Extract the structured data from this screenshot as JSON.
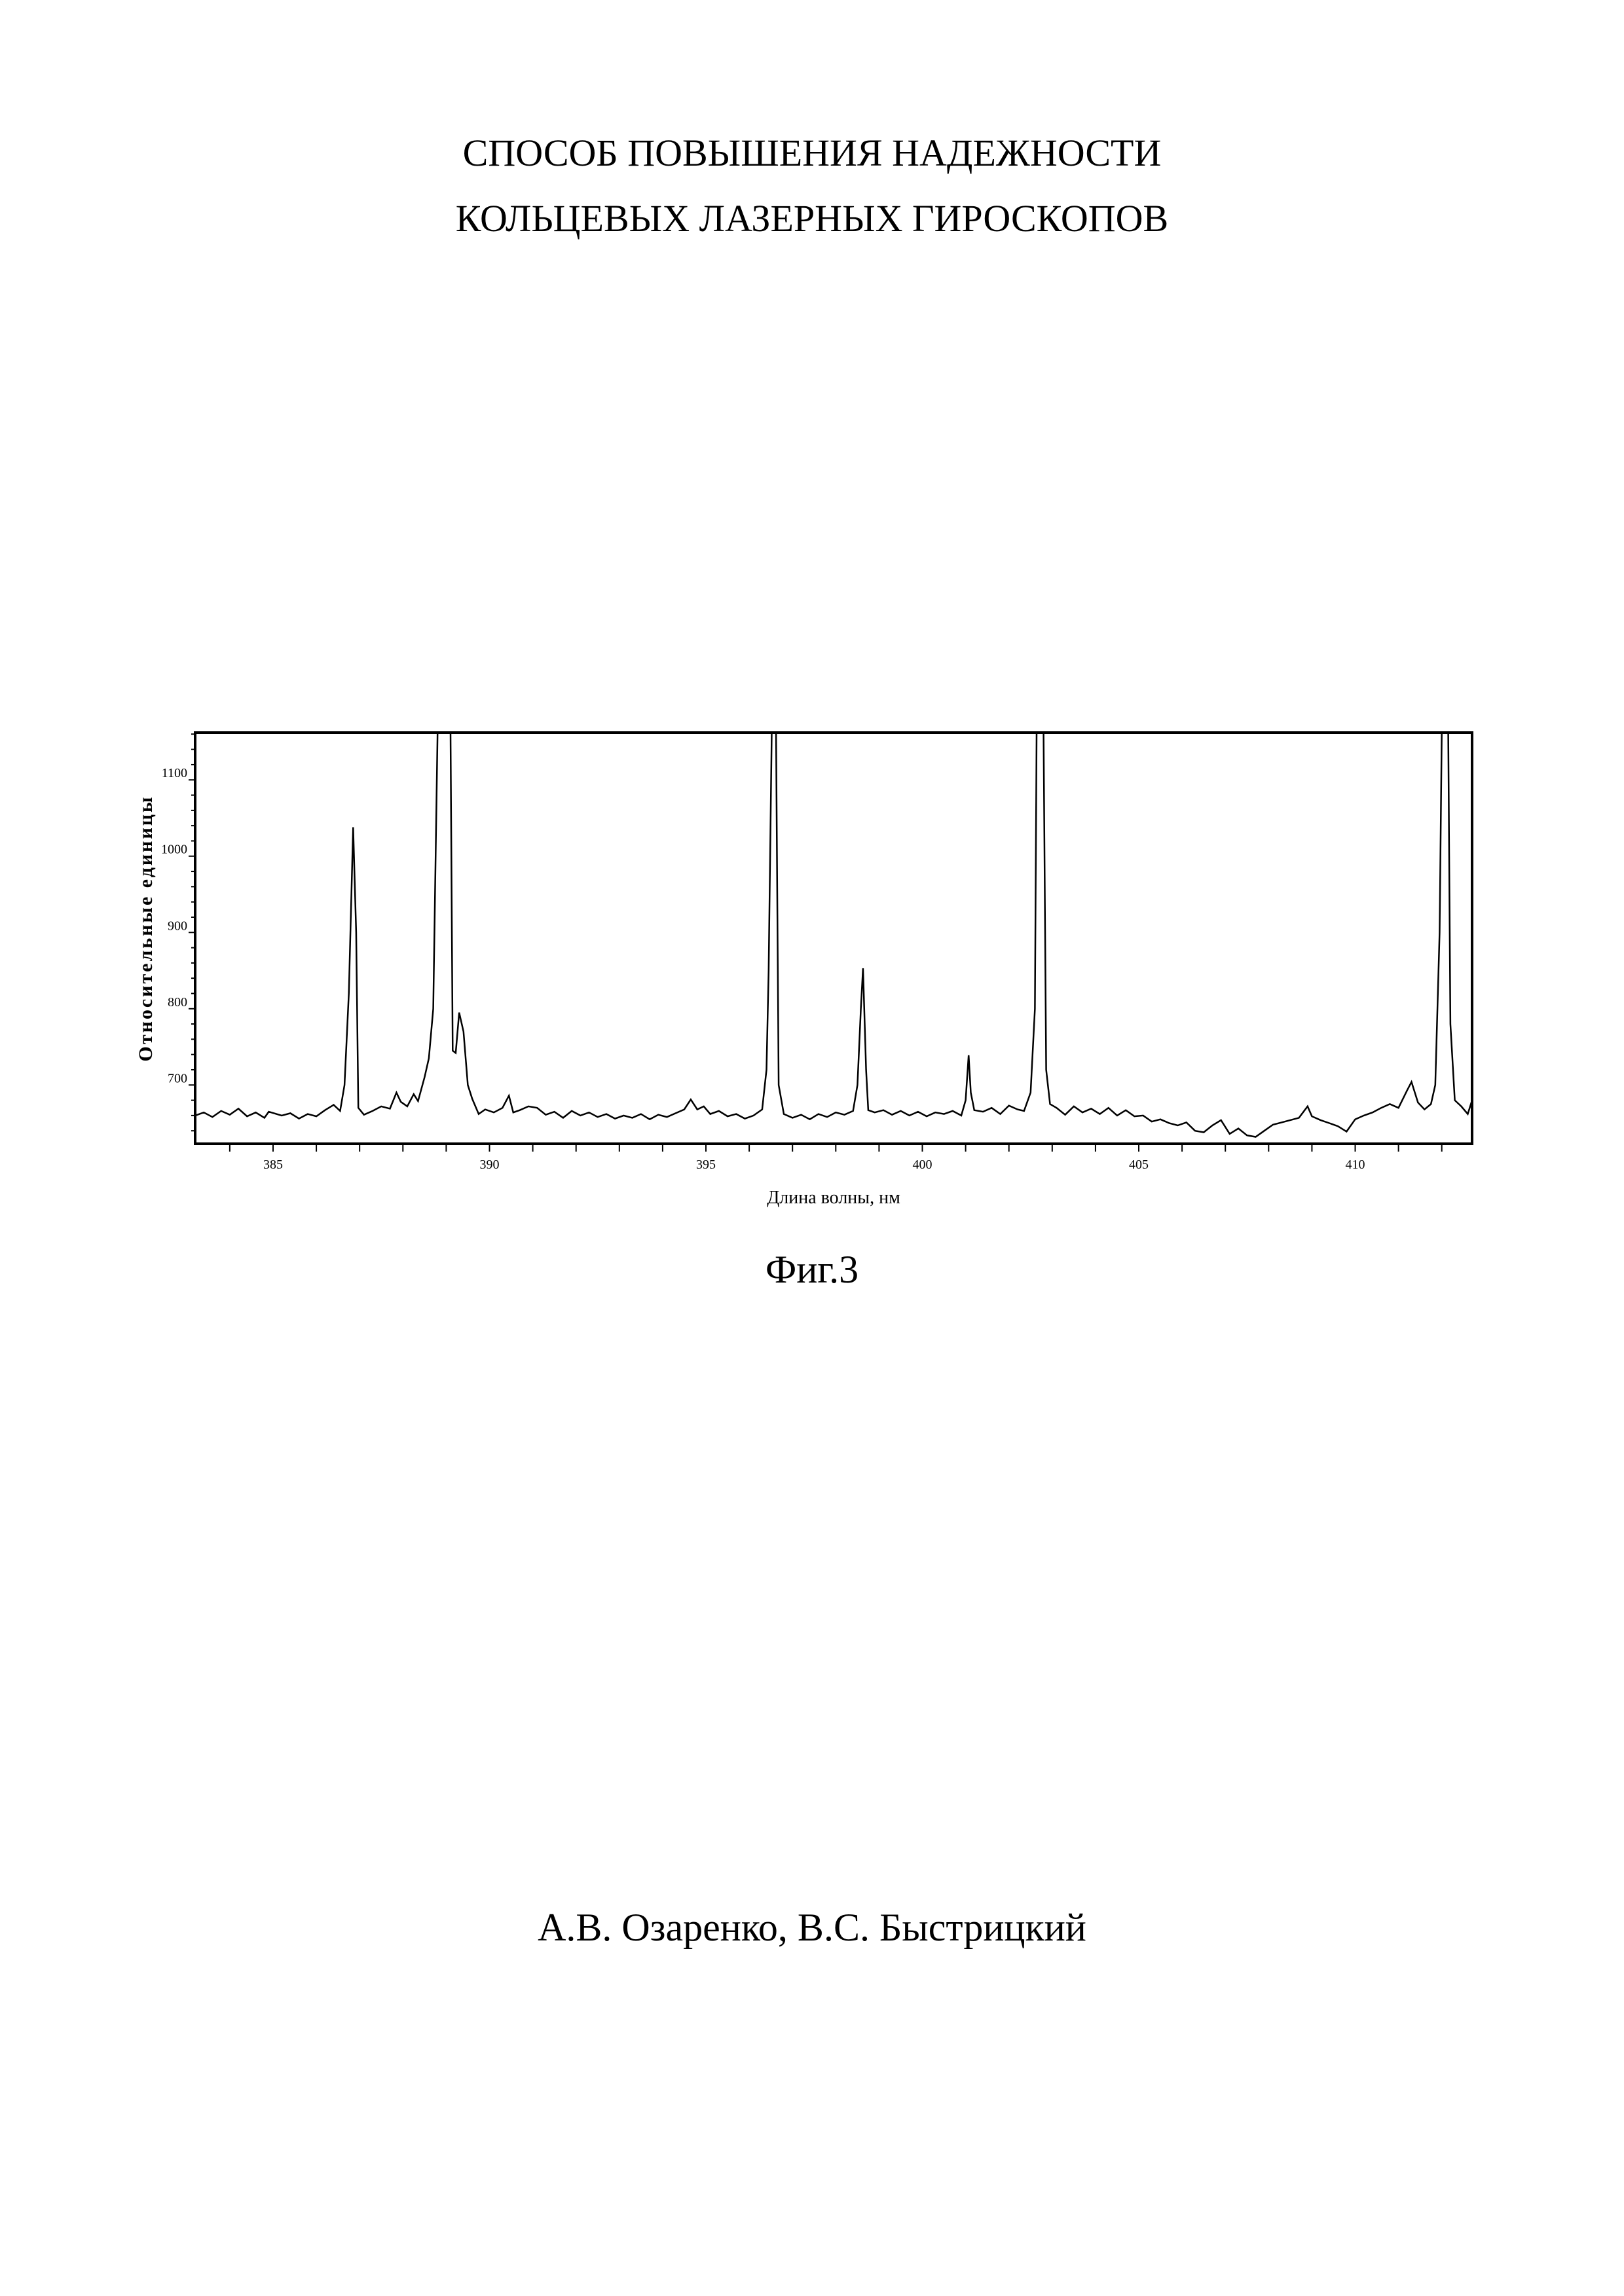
{
  "document": {
    "title_line1": "СПОСОБ ПОВЫШЕНИЯ НАДЕЖНОСТИ",
    "title_line2": "КОЛЬЦЕВЫХ ЛАЗЕРНЫХ ГИРОСКОПОВ",
    "figure_caption": "Фиг.3",
    "authors": "А.В. Озаренко, В.С. Быстрицкий"
  },
  "chart_data": {
    "type": "line",
    "title": "",
    "xlabel": "Длина волны, нм",
    "ylabel": "Относительные единицы",
    "xlim": [
      383.2,
      412.7
    ],
    "ylim": [
      623,
      1162
    ],
    "xticks": [
      385,
      390,
      395,
      400,
      405,
      410
    ],
    "yticks": [
      700,
      800,
      900,
      1000,
      1100
    ],
    "grid": false,
    "line_color": "#000000",
    "x": [
      383.2,
      383.4,
      383.6,
      383.8,
      384.0,
      384.2,
      384.4,
      384.6,
      384.8,
      384.9,
      385.2,
      385.4,
      385.6,
      385.8,
      386.0,
      386.2,
      386.4,
      386.55,
      386.65,
      386.75,
      386.85,
      386.92,
      386.97,
      387.1,
      387.3,
      387.5,
      387.7,
      387.85,
      387.95,
      388.1,
      388.25,
      388.35,
      388.5,
      388.6,
      388.7,
      388.8,
      389.1,
      389.15,
      389.22,
      389.3,
      389.4,
      389.5,
      389.6,
      389.75,
      389.9,
      390.1,
      390.3,
      390.45,
      390.55,
      390.7,
      390.9,
      391.1,
      391.3,
      391.5,
      391.7,
      391.9,
      392.1,
      392.3,
      392.5,
      392.7,
      392.9,
      393.1,
      393.3,
      393.5,
      393.7,
      393.9,
      394.1,
      394.3,
      394.5,
      394.65,
      394.8,
      394.95,
      395.1,
      395.3,
      395.5,
      395.7,
      395.9,
      396.1,
      396.3,
      396.4,
      396.45,
      396.52,
      396.62,
      396.68,
      396.8,
      397.0,
      397.2,
      397.4,
      397.6,
      397.8,
      398.0,
      398.2,
      398.4,
      398.5,
      398.58,
      398.63,
      398.7,
      398.75,
      398.9,
      399.1,
      399.3,
      399.5,
      399.7,
      399.9,
      400.1,
      400.3,
      400.5,
      400.7,
      400.9,
      401.0,
      401.07,
      401.12,
      401.2,
      401.4,
      401.6,
      401.8,
      402.0,
      402.2,
      402.35,
      402.5,
      402.6,
      402.64,
      402.8,
      402.86,
      402.95,
      403.1,
      403.3,
      403.5,
      403.7,
      403.9,
      404.1,
      404.3,
      404.5,
      404.7,
      404.9,
      405.1,
      405.3,
      405.5,
      405.7,
      405.9,
      406.1,
      406.3,
      406.5,
      406.7,
      406.9,
      407.1,
      407.3,
      407.5,
      407.7,
      407.9,
      408.1,
      408.3,
      408.5,
      408.7,
      408.9,
      409.0,
      409.2,
      409.4,
      409.6,
      409.8,
      410.0,
      410.2,
      410.4,
      410.6,
      410.8,
      411.0,
      411.2,
      411.3,
      411.45,
      411.6,
      411.75,
      411.85,
      411.95,
      412.0,
      412.15,
      412.2,
      412.3,
      412.45,
      412.6,
      412.7
    ],
    "y": [
      660,
      664,
      658,
      666,
      661,
      669,
      659,
      664,
      657,
      665,
      660,
      663,
      656,
      662,
      659,
      667,
      674,
      666,
      700,
      820,
      1038,
      900,
      670,
      661,
      666,
      672,
      669,
      690,
      678,
      672,
      688,
      679,
      710,
      735,
      800,
      1162,
      1162,
      745,
      742,
      795,
      770,
      700,
      682,
      662,
      668,
      664,
      670,
      686,
      664,
      667,
      672,
      670,
      661,
      665,
      657,
      666,
      660,
      664,
      658,
      662,
      656,
      660,
      657,
      662,
      655,
      661,
      658,
      663,
      668,
      681,
      668,
      672,
      662,
      666,
      659,
      662,
      656,
      660,
      668,
      720,
      850,
      1162,
      1162,
      700,
      662,
      657,
      661,
      655,
      662,
      658,
      664,
      661,
      666,
      700,
      800,
      853,
      720,
      667,
      664,
      667,
      661,
      666,
      660,
      665,
      659,
      664,
      662,
      666,
      660,
      680,
      739,
      690,
      667,
      665,
      670,
      662,
      673,
      668,
      666,
      690,
      800,
      1162,
      1162,
      720,
      675,
      670,
      661,
      672,
      664,
      669,
      662,
      670,
      660,
      667,
      659,
      660,
      652,
      655,
      650,
      647,
      651,
      640,
      638,
      647,
      654,
      636,
      643,
      634,
      632,
      640,
      648,
      651,
      654,
      657,
      672,
      659,
      654,
      650,
      646,
      639,
      655,
      660,
      664,
      670,
      675,
      670,
      693,
      704,
      677,
      668,
      675,
      700,
      900,
      1162,
      1162,
      780,
      680,
      672,
      662,
      680
    ]
  }
}
